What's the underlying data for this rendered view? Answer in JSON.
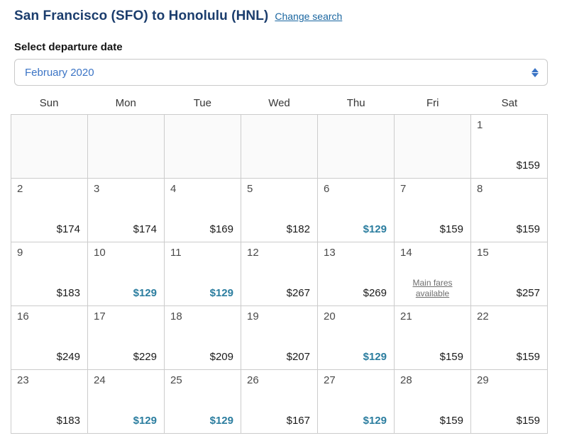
{
  "header": {
    "title": "San Francisco (SFO) to Honolulu (HNL)",
    "change_search_label": "Change search"
  },
  "departure_select": {
    "label": "Select departure date",
    "selected_value": "February 2020",
    "stepper_icon": "up-down-arrows-icon"
  },
  "calendar": {
    "weekday_headers": [
      "Sun",
      "Mon",
      "Tue",
      "Wed",
      "Thu",
      "Fri",
      "Sat"
    ],
    "weeks": [
      [
        {
          "empty": true
        },
        {
          "empty": true
        },
        {
          "empty": true
        },
        {
          "empty": true
        },
        {
          "empty": true
        },
        {
          "empty": true
        },
        {
          "day": "1",
          "price": "$159",
          "deal": false
        }
      ],
      [
        {
          "day": "2",
          "price": "$174",
          "deal": false
        },
        {
          "day": "3",
          "price": "$174",
          "deal": false
        },
        {
          "day": "4",
          "price": "$169",
          "deal": false
        },
        {
          "day": "5",
          "price": "$182",
          "deal": false
        },
        {
          "day": "6",
          "price": "$129",
          "deal": true
        },
        {
          "day": "7",
          "price": "$159",
          "deal": false
        },
        {
          "day": "8",
          "price": "$159",
          "deal": false
        }
      ],
      [
        {
          "day": "9",
          "price": "$183",
          "deal": false
        },
        {
          "day": "10",
          "price": "$129",
          "deal": true
        },
        {
          "day": "11",
          "price": "$129",
          "deal": true
        },
        {
          "day": "12",
          "price": "$267",
          "deal": false
        },
        {
          "day": "13",
          "price": "$269",
          "deal": false
        },
        {
          "day": "14",
          "link": "Main fares available"
        },
        {
          "day": "15",
          "price": "$257",
          "deal": false
        }
      ],
      [
        {
          "day": "16",
          "price": "$249",
          "deal": false
        },
        {
          "day": "17",
          "price": "$229",
          "deal": false
        },
        {
          "day": "18",
          "price": "$209",
          "deal": false
        },
        {
          "day": "19",
          "price": "$207",
          "deal": false
        },
        {
          "day": "20",
          "price": "$129",
          "deal": true
        },
        {
          "day": "21",
          "price": "$159",
          "deal": false
        },
        {
          "day": "22",
          "price": "$159",
          "deal": false
        }
      ],
      [
        {
          "day": "23",
          "price": "$183",
          "deal": false
        },
        {
          "day": "24",
          "price": "$129",
          "deal": true
        },
        {
          "day": "25",
          "price": "$129",
          "deal": true
        },
        {
          "day": "26",
          "price": "$167",
          "deal": false
        },
        {
          "day": "27",
          "price": "$129",
          "deal": true
        },
        {
          "day": "28",
          "price": "$159",
          "deal": false
        },
        {
          "day": "29",
          "price": "$159",
          "deal": false
        }
      ]
    ]
  },
  "colors": {
    "title_navy": "#1b3d6d",
    "link_blue": "#1a66a0",
    "select_text_blue": "#3b74c5",
    "deal_teal": "#2b7d9f",
    "grid_border": "#cccccc",
    "empty_cell_bg": "#fafafa",
    "main_fares_link_gray": "#6e6e6e"
  }
}
